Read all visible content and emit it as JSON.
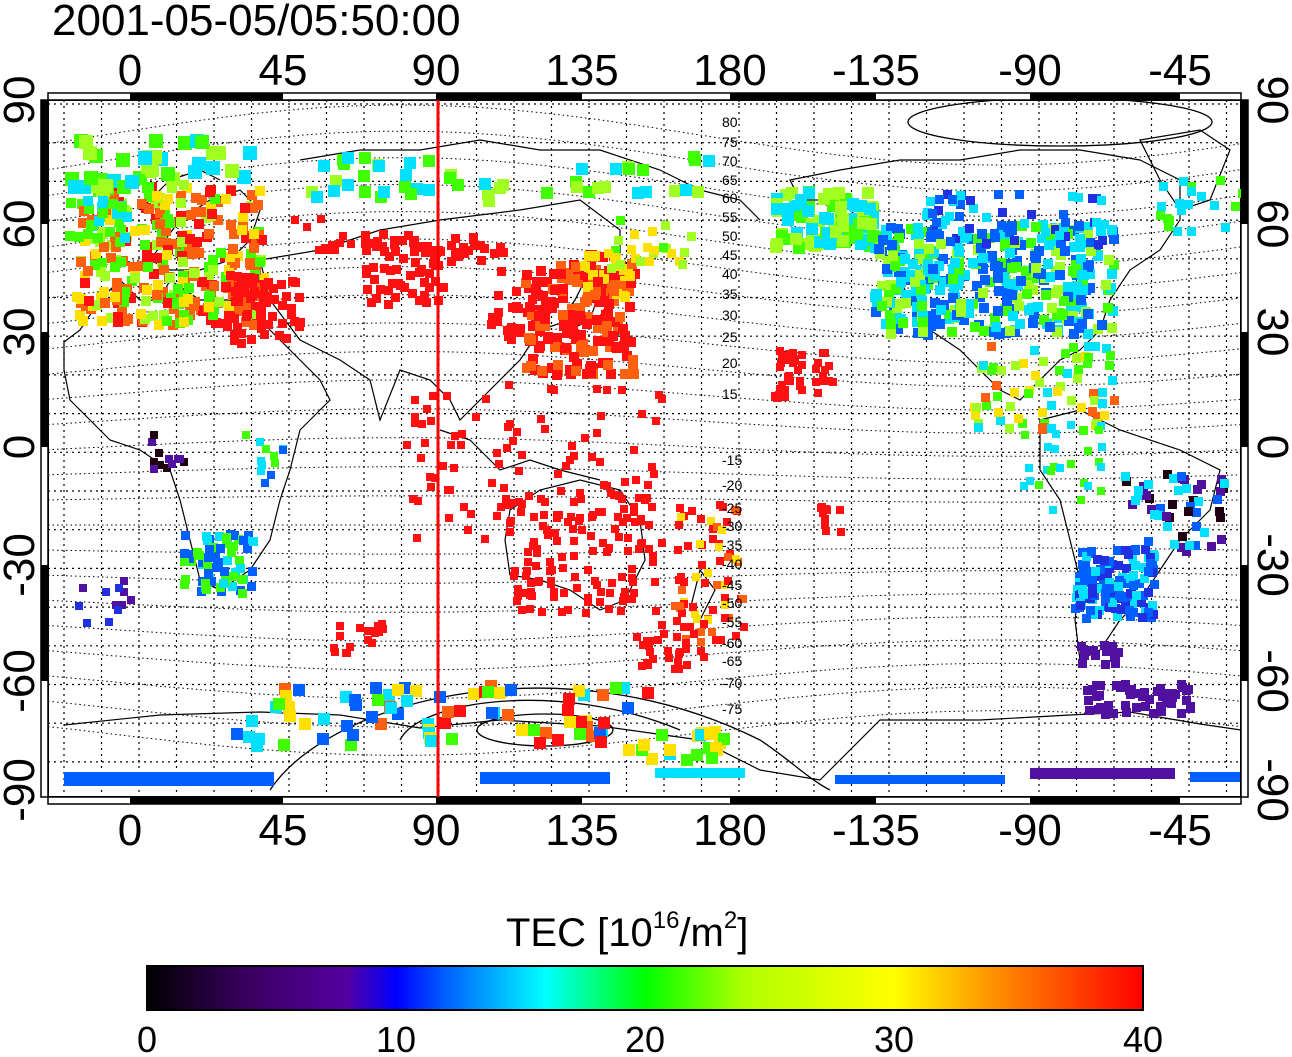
{
  "title": "2001-05-05/05:50:00",
  "longitude_ticks": [
    "0",
    "45",
    "90",
    "135",
    "180",
    "-135",
    "-90",
    "-45"
  ],
  "latitude_ticks": [
    "90",
    "60",
    "30",
    "0",
    "-30",
    "-60",
    "-90"
  ],
  "contour_labels": [
    "80",
    "75",
    "70",
    "65",
    "60",
    "55",
    "50",
    "45",
    "40",
    "35",
    "30",
    "25",
    "20",
    "15",
    "-15",
    "-20",
    "-25",
    "-30",
    "-35",
    "-40",
    "-45",
    "-50",
    "-55",
    "-60",
    "-65",
    "-70",
    "-75"
  ],
  "colorbar": {
    "label_main": "TEC  [10",
    "label_exp1": "16",
    "label_mid": "/m",
    "label_exp2": "2",
    "label_end": "]",
    "ticks": [
      "0",
      "10",
      "20",
      "30",
      "40"
    ],
    "min": 0,
    "max": 40
  },
  "colors": {
    "marker_line": "#ff0000",
    "scale": [
      "#000000",
      "#3a0060",
      "#5500a0",
      "#0000ff",
      "#0060ff",
      "#00ffff",
      "#00ff60",
      "#00ff00",
      "#b0ff00",
      "#ffff00",
      "#ff9000",
      "#ff0000"
    ]
  },
  "marker_longitude": 92
}
